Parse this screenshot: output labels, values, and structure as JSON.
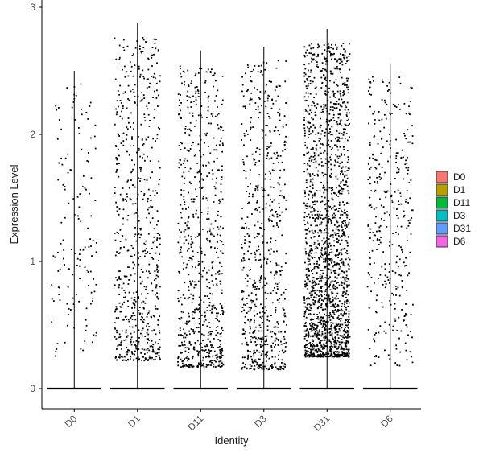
{
  "chart_data": {
    "type": "scatter",
    "subtype": "jittered violin (strip) plot",
    "title": "",
    "xlabel": "Identity",
    "ylabel": "Expression Level",
    "ylim": [
      -0.15,
      3.0
    ],
    "yticks": [
      0,
      1,
      2,
      3
    ],
    "categories": [
      "D0",
      "D1",
      "D11",
      "D3",
      "D31",
      "D6"
    ],
    "category_max": [
      2.5,
      2.88,
      2.66,
      2.69,
      2.83,
      2.56
    ],
    "approx_nonzero_points": [
      140,
      650,
      700,
      650,
      1800,
      350
    ],
    "nonzero_min": [
      0.25,
      0.22,
      0.17,
      0.15,
      0.25,
      0.18
    ],
    "zero_baseline_value": 0,
    "grid": false,
    "legend": {
      "placement": "right",
      "entries": [
        "D0",
        "D1",
        "D11",
        "D3",
        "D31",
        "D6"
      ],
      "colors": [
        "#F8766D",
        "#B79F00",
        "#00BA38",
        "#00BFC4",
        "#619CFF",
        "#F564E3"
      ]
    },
    "point_color": "#000000"
  }
}
